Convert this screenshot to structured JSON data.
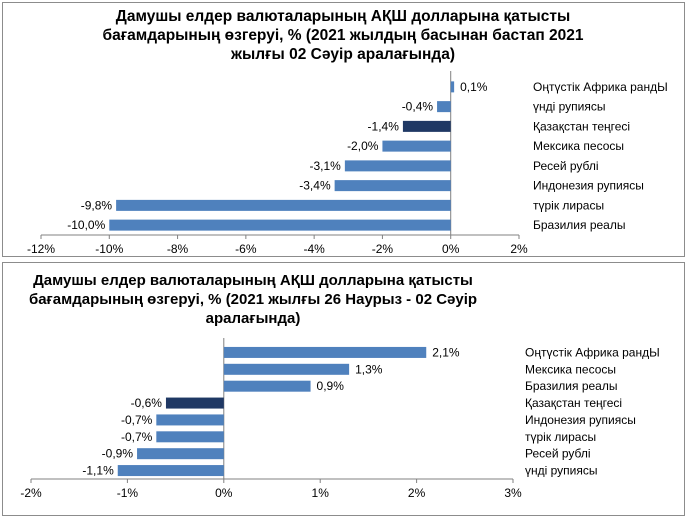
{
  "chart_data": [
    {
      "type": "bar",
      "orientation": "horizontal",
      "title_lines": [
        "Дамушы елдер валюталарының АҚШ долларына қатысты",
        "бағамдарының өзгеруі, %  (2021 жылдың басынан бастап 2021",
        "жылғы 02 Сәуір аралағында)"
      ],
      "categories": [
        "Оңтүстік Африка рандЫ",
        "үнді рупиясы",
        "Қазақстан теңгесі",
        "Мексика песосы",
        "Ресей рублі",
        "Индонезия рупиясы",
        "түрік лирасы",
        "Бразилия реалы"
      ],
      "values": [
        0.1,
        -0.4,
        -1.4,
        -2.0,
        -3.1,
        -3.4,
        -9.8,
        -10.0
      ],
      "value_labels": [
        "0,1%",
        "-0,4%",
        "-1,4%",
        "-2,0%",
        "-3,1%",
        "-3,4%",
        "-9,8%",
        "-10,0%"
      ],
      "highlight_index": 2,
      "xlim": [
        -12,
        2
      ],
      "xticks": [
        -12,
        -10,
        -8,
        -6,
        -4,
        -2,
        0,
        2
      ],
      "xtick_labels": [
        "-12%",
        "-10%",
        "-8%",
        "-6%",
        "-4%",
        "-2%",
        "0%",
        "2%"
      ],
      "colors": {
        "bar": "#4f81bd",
        "highlight": "#1f3864",
        "axis": "#808080"
      }
    },
    {
      "type": "bar",
      "orientation": "horizontal",
      "title_lines": [
        "Дамушы елдер валюталарының АҚШ долларына қатысты",
        "бағамдарының өзгеруі, %  (2021 жылғы 26 Наурыз - 02 Сәуір",
        "аралағында)"
      ],
      "categories": [
        "Оңтүстік Африка рандЫ",
        "Мексика песосы",
        "Бразилия реалы",
        "Қазақстан теңгесі",
        "Индонезия рупиясы",
        "түрік лирасы",
        "Ресей рублі",
        "үнді рупиясы"
      ],
      "values": [
        2.1,
        1.3,
        0.9,
        -0.6,
        -0.7,
        -0.7,
        -0.9,
        -1.1
      ],
      "value_labels": [
        "2,1%",
        "1,3%",
        "0,9%",
        "-0,6%",
        "-0,7%",
        "-0,7%",
        "-0,9%",
        "-1,1%"
      ],
      "highlight_index": 3,
      "xlim": [
        -2,
        3
      ],
      "xticks": [
        -2,
        -1,
        0,
        1,
        2,
        3
      ],
      "xtick_labels": [
        "-2%",
        "-1%",
        "0%",
        "1%",
        "2%",
        "3%"
      ],
      "colors": {
        "bar": "#4f81bd",
        "highlight": "#1f3864",
        "axis": "#808080"
      }
    }
  ]
}
